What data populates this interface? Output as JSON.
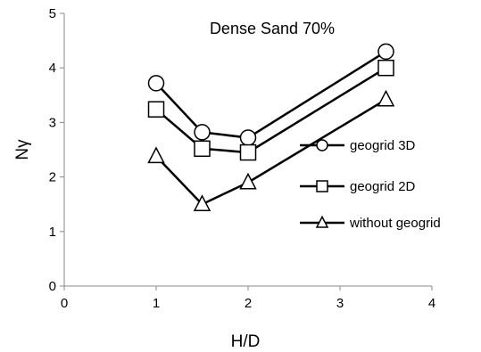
{
  "chart_data": {
    "type": "line",
    "title": "Dense Sand 70%",
    "xlabel": "H/D",
    "ylabel": "Nγ",
    "xlim": [
      0,
      4
    ],
    "ylim": [
      0,
      5
    ],
    "xticks": [
      "0",
      "1",
      "2",
      "3",
      "4"
    ],
    "yticks": [
      "0",
      "1",
      "2",
      "3",
      "4",
      "5"
    ],
    "grid": false,
    "legend_position": "right",
    "x": [
      1,
      1.5,
      2,
      3.5
    ],
    "series": [
      {
        "name": "geogrid 3D",
        "marker": "circle",
        "values": [
          3.72,
          2.82,
          2.72,
          4.3
        ]
      },
      {
        "name": "geogrid 2D",
        "marker": "square",
        "values": [
          3.24,
          2.52,
          2.45,
          4.0
        ]
      },
      {
        "name": "without geogrid",
        "marker": "triangle",
        "values": [
          2.38,
          1.5,
          1.9,
          3.42
        ]
      }
    ],
    "line_color": "#000000"
  }
}
